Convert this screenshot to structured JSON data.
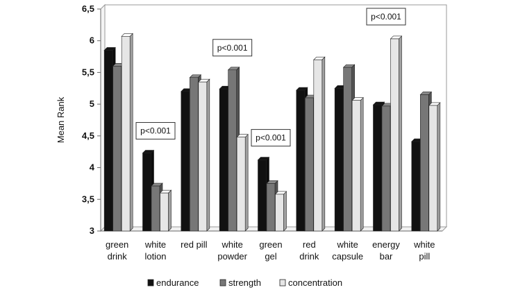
{
  "chart_data": {
    "type": "bar",
    "title": "",
    "xlabel": "",
    "ylabel": "Mean Rank",
    "ylim": [
      3,
      6.5
    ],
    "yticks": [
      "3",
      "3,5",
      "4",
      "4,5",
      "5",
      "5,5",
      "6",
      "6,5"
    ],
    "categories": [
      [
        "green",
        "drink"
      ],
      [
        "white",
        "lotion"
      ],
      [
        "red pill"
      ],
      [
        "white",
        "powder"
      ],
      [
        "green",
        "gel"
      ],
      [
        "red",
        "drink"
      ],
      [
        "white",
        "capsule"
      ],
      [
        "energy",
        "bar"
      ],
      [
        "white",
        "pill"
      ]
    ],
    "series": [
      {
        "name": "endurance",
        "color": "#111111",
        "values": [
          5.85,
          4.23,
          5.2,
          5.24,
          4.12,
          5.22,
          5.25,
          4.99,
          4.41
        ]
      },
      {
        "name": "strength",
        "color": "#777777",
        "values": [
          5.6,
          3.71,
          5.42,
          5.54,
          3.75,
          5.1,
          5.58,
          4.97,
          5.15
        ]
      },
      {
        "name": "concentration",
        "color": "#e6e6e6",
        "values": [
          6.07,
          3.6,
          5.35,
          4.48,
          3.58,
          5.7,
          5.06,
          6.03,
          4.98
        ]
      }
    ],
    "annotations": [
      {
        "text": "p<0.001",
        "category_index": 1
      },
      {
        "text": "p<0.001",
        "category_index": 3
      },
      {
        "text": "p<0.001",
        "category_index": 4
      },
      {
        "text": "p<0.001",
        "category_index": 7
      }
    ],
    "legend_position": "bottom",
    "grid": false
  }
}
